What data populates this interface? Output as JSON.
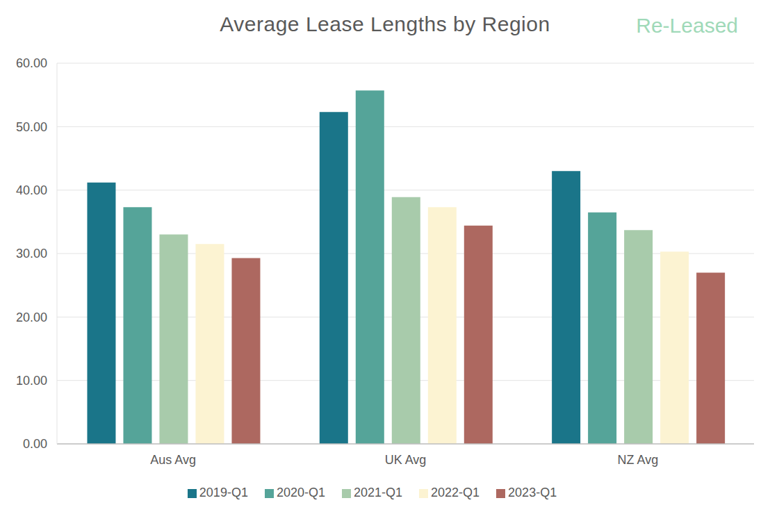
{
  "chart_data": {
    "type": "bar",
    "title": "Average Lease Lengths by Region",
    "annotations": [
      "Re-Leased"
    ],
    "categories": [
      "Aus Avg",
      "UK Avg",
      "NZ Avg"
    ],
    "series": [
      {
        "name": "2019-Q1",
        "color": "#1a7589",
        "values": [
          41.2,
          52.3,
          43.0
        ]
      },
      {
        "name": "2020-Q1",
        "color": "#55a499",
        "values": [
          37.3,
          55.7,
          36.5
        ]
      },
      {
        "name": "2021-Q1",
        "color": "#a8cbab",
        "values": [
          33.0,
          38.9,
          33.7
        ]
      },
      {
        "name": "2022-Q1",
        "color": "#fcf3d2",
        "values": [
          31.5,
          37.3,
          30.3
        ]
      },
      {
        "name": "2023-Q1",
        "color": "#ad6860",
        "values": [
          29.3,
          34.4,
          27.0
        ]
      }
    ],
    "ylim": [
      0,
      60
    ],
    "yticks": [
      {
        "value": 0,
        "label": "0.00"
      },
      {
        "value": 10,
        "label": "10.00"
      },
      {
        "value": 20,
        "label": "20.00"
      },
      {
        "value": 30,
        "label": "30.00"
      },
      {
        "value": 40,
        "label": "40.00"
      },
      {
        "value": 50,
        "label": "50.00"
      },
      {
        "value": 60,
        "label": "60.00"
      }
    ],
    "grid": true,
    "legend": "bottom"
  }
}
